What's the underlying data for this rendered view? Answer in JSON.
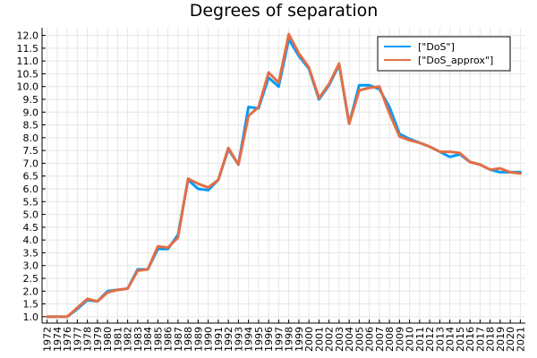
{
  "chart_data": {
    "type": "line",
    "title": "Degrees of separation",
    "xlabel": "",
    "ylabel": "",
    "categories": [
      "1972",
      "1974",
      "1976",
      "1977",
      "1978",
      "1979",
      "1980",
      "1981",
      "1982",
      "1983",
      "1984",
      "1985",
      "1986",
      "1987",
      "1988",
      "1989",
      "1990",
      "1991",
      "1992",
      "1993",
      "1994",
      "1995",
      "1996",
      "1997",
      "1998",
      "1999",
      "2000",
      "2001",
      "2002",
      "2003",
      "2004",
      "2005",
      "2006",
      "2007",
      "2008",
      "2009",
      "2010",
      "2011",
      "2012",
      "2013",
      "2014",
      "2015",
      "2016",
      "2017",
      "2018",
      "2019",
      "2020",
      "2021"
    ],
    "yticks": [
      "1.0",
      "1.5",
      "2.0",
      "2.5",
      "3.0",
      "3.5",
      "4.0",
      "4.5",
      "5.0",
      "5.5",
      "6.0",
      "6.5",
      "7.0",
      "7.5",
      "8.0",
      "8.5",
      "9.0",
      "9.5",
      "10.0",
      "10.5",
      "11.0",
      "11.5",
      "12.0"
    ],
    "ylim": [
      0.75,
      12.3
    ],
    "grid": true,
    "legend_position": "top-right",
    "series": [
      {
        "name": "[\"DoS\"]",
        "color": "#009af9",
        "values": [
          1.0,
          1.0,
          1.0,
          1.3,
          1.65,
          1.6,
          2.0,
          2.05,
          2.1,
          2.85,
          2.85,
          3.65,
          3.65,
          4.2,
          6.35,
          6.0,
          5.95,
          6.35,
          7.55,
          6.95,
          9.2,
          9.15,
          10.35,
          10.0,
          11.85,
          11.2,
          10.7,
          9.5,
          10.05,
          10.85,
          8.55,
          10.05,
          10.05,
          9.9,
          9.2,
          8.15,
          7.95,
          7.8,
          7.65,
          7.45,
          7.25,
          7.35,
          7.05,
          6.95,
          6.75,
          6.65,
          6.65,
          6.65
        ]
      },
      {
        "name": "[\"DoS_approx\"]",
        "color": "#e26f46",
        "values": [
          1.0,
          1.0,
          1.0,
          1.35,
          1.7,
          1.6,
          1.95,
          2.05,
          2.1,
          2.8,
          2.85,
          3.75,
          3.7,
          4.1,
          6.4,
          6.2,
          6.05,
          6.35,
          7.6,
          6.95,
          8.85,
          9.2,
          10.55,
          10.15,
          12.05,
          11.3,
          10.75,
          9.55,
          10.1,
          10.9,
          8.55,
          9.85,
          9.95,
          10.0,
          8.95,
          8.05,
          7.9,
          7.8,
          7.65,
          7.45,
          7.45,
          7.4,
          7.05,
          6.95,
          6.75,
          6.8,
          6.65,
          6.6
        ]
      }
    ]
  }
}
